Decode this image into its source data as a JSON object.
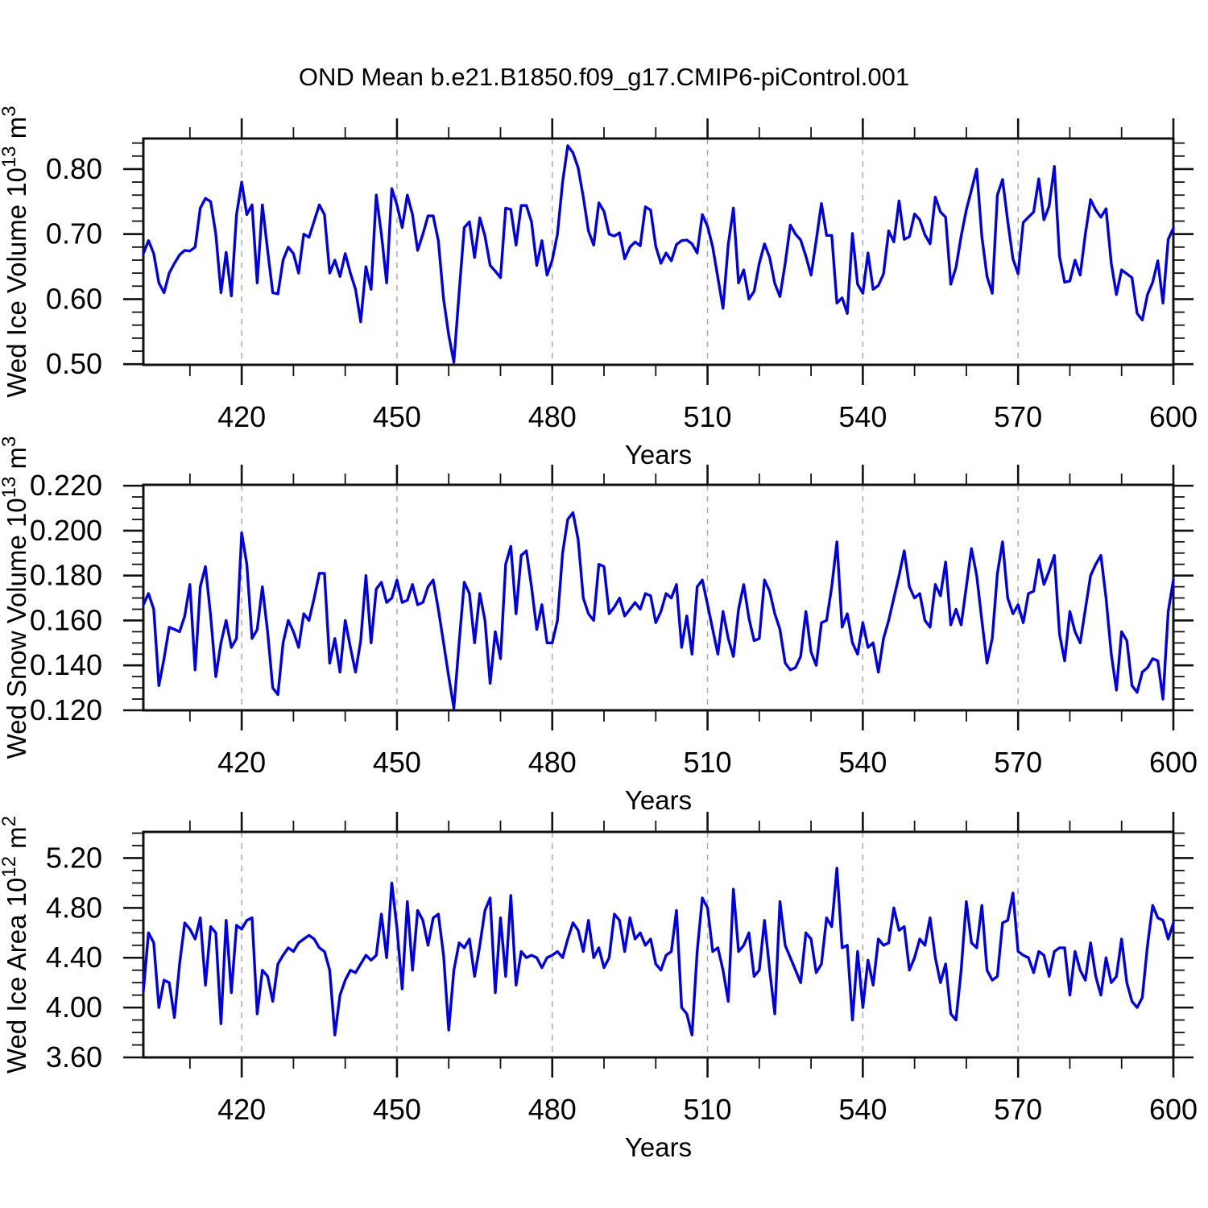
{
  "title": "OND Mean b.e21.B1850.f09_g17.CMIP6-piControl.001",
  "style": {
    "line_color": "#0000e8",
    "frame_color": "#111111",
    "grid_color": "#aaaaaa",
    "text_color": "#000000",
    "background": "#ffffff"
  },
  "chart_data": [
    {
      "type": "line",
      "ylabel_parts": [
        {
          "t": "Wed Ice Volume 10"
        },
        {
          "sup": "13"
        },
        {
          "t": " m"
        },
        {
          "sup": "3"
        }
      ],
      "xlabel": "Years",
      "x_range": [
        401,
        600
      ],
      "x_major": [
        420,
        450,
        480,
        510,
        540,
        570,
        600
      ],
      "x_minor_step": 10,
      "y_range": [
        0.499,
        0.847
      ],
      "y_major": [
        0.5,
        0.6,
        0.7,
        0.8
      ],
      "y_minor_step": 0.02,
      "y_decimals": 2,
      "grid": true,
      "legend": "none",
      "x_start_year": 401,
      "values": [
        0.67,
        0.69,
        0.67,
        0.625,
        0.61,
        0.64,
        0.655,
        0.668,
        0.675,
        0.674,
        0.68,
        0.74,
        0.755,
        0.75,
        0.7,
        0.61,
        0.672,
        0.605,
        0.73,
        0.78,
        0.73,
        0.745,
        0.625,
        0.745,
        0.675,
        0.61,
        0.608,
        0.66,
        0.68,
        0.67,
        0.64,
        0.7,
        0.695,
        0.72,
        0.745,
        0.73,
        0.64,
        0.66,
        0.635,
        0.67,
        0.64,
        0.615,
        0.565,
        0.65,
        0.615,
        0.76,
        0.7,
        0.625,
        0.77,
        0.745,
        0.71,
        0.76,
        0.73,
        0.675,
        0.7,
        0.728,
        0.728,
        0.69,
        0.6,
        0.545,
        0.503,
        0.61,
        0.71,
        0.719,
        0.664,
        0.725,
        0.697,
        0.652,
        0.643,
        0.633,
        0.74,
        0.738,
        0.683,
        0.744,
        0.744,
        0.719,
        0.652,
        0.69,
        0.637,
        0.66,
        0.7,
        0.78,
        0.836,
        0.825,
        0.802,
        0.757,
        0.705,
        0.683,
        0.748,
        0.735,
        0.7,
        0.697,
        0.702,
        0.662,
        0.68,
        0.688,
        0.682,
        0.742,
        0.737,
        0.681,
        0.655,
        0.671,
        0.659,
        0.684,
        0.69,
        0.691,
        0.685,
        0.671,
        0.73,
        0.712,
        0.68,
        0.633,
        0.586,
        0.684,
        0.74,
        0.625,
        0.645,
        0.6,
        0.612,
        0.655,
        0.685,
        0.664,
        0.624,
        0.604,
        0.655,
        0.714,
        0.7,
        0.691,
        0.666,
        0.637,
        0.69,
        0.747,
        0.698,
        0.698,
        0.594,
        0.602,
        0.578,
        0.701,
        0.623,
        0.609,
        0.671,
        0.615,
        0.621,
        0.639,
        0.705,
        0.688,
        0.751,
        0.692,
        0.696,
        0.731,
        0.722,
        0.699,
        0.685,
        0.757,
        0.734,
        0.726,
        0.623,
        0.649,
        0.697,
        0.737,
        0.768,
        0.8,
        0.696,
        0.635,
        0.609,
        0.76,
        0.784,
        0.72,
        0.662,
        0.639,
        0.718,
        0.726,
        0.734,
        0.785,
        0.722,
        0.743,
        0.804,
        0.666,
        0.626,
        0.628,
        0.66,
        0.637,
        0.7,
        0.753,
        0.737,
        0.726,
        0.739,
        0.655,
        0.607,
        0.645,
        0.639,
        0.633,
        0.578,
        0.568,
        0.607,
        0.626,
        0.659,
        0.594,
        0.692,
        0.709
      ]
    },
    {
      "type": "line",
      "ylabel_parts": [
        {
          "t": "Wed Snow Volume 10"
        },
        {
          "sup": "13"
        },
        {
          "t": " m"
        },
        {
          "sup": "3"
        }
      ],
      "xlabel": "Years",
      "x_range": [
        401,
        600
      ],
      "x_major": [
        420,
        450,
        480,
        510,
        540,
        570,
        600
      ],
      "x_minor_step": 10,
      "y_range": [
        0.12,
        0.2204
      ],
      "y_major": [
        0.12,
        0.14,
        0.16,
        0.18,
        0.2,
        0.22
      ],
      "y_minor_step": 0.005,
      "y_decimals": 3,
      "grid": true,
      "legend": "none",
      "x_start_year": 401,
      "values": [
        0.167,
        0.172,
        0.165,
        0.131,
        0.143,
        0.157,
        0.156,
        0.155,
        0.162,
        0.176,
        0.138,
        0.175,
        0.184,
        0.162,
        0.135,
        0.15,
        0.16,
        0.148,
        0.152,
        0.199,
        0.185,
        0.152,
        0.156,
        0.175,
        0.155,
        0.13,
        0.127,
        0.15,
        0.16,
        0.155,
        0.148,
        0.163,
        0.16,
        0.17,
        0.181,
        0.181,
        0.141,
        0.152,
        0.137,
        0.16,
        0.148,
        0.137,
        0.151,
        0.18,
        0.15,
        0.174,
        0.177,
        0.168,
        0.17,
        0.178,
        0.168,
        0.169,
        0.176,
        0.167,
        0.168,
        0.175,
        0.178,
        0.165,
        0.15,
        0.135,
        0.121,
        0.15,
        0.177,
        0.172,
        0.15,
        0.172,
        0.16,
        0.132,
        0.155,
        0.143,
        0.185,
        0.193,
        0.163,
        0.189,
        0.191,
        0.175,
        0.156,
        0.167,
        0.15,
        0.15,
        0.16,
        0.19,
        0.205,
        0.208,
        0.196,
        0.17,
        0.163,
        0.16,
        0.185,
        0.184,
        0.163,
        0.166,
        0.17,
        0.162,
        0.165,
        0.168,
        0.165,
        0.172,
        0.171,
        0.159,
        0.164,
        0.172,
        0.17,
        0.176,
        0.148,
        0.162,
        0.145,
        0.175,
        0.178,
        0.167,
        0.156,
        0.145,
        0.164,
        0.152,
        0.144,
        0.165,
        0.176,
        0.161,
        0.151,
        0.152,
        0.178,
        0.173,
        0.163,
        0.156,
        0.141,
        0.138,
        0.139,
        0.144,
        0.164,
        0.146,
        0.14,
        0.159,
        0.16,
        0.175,
        0.195,
        0.157,
        0.163,
        0.15,
        0.145,
        0.159,
        0.148,
        0.15,
        0.137,
        0.152,
        0.16,
        0.17,
        0.18,
        0.191,
        0.175,
        0.17,
        0.172,
        0.16,
        0.157,
        0.176,
        0.171,
        0.186,
        0.158,
        0.165,
        0.158,
        0.175,
        0.192,
        0.18,
        0.16,
        0.141,
        0.152,
        0.181,
        0.195,
        0.17,
        0.163,
        0.167,
        0.159,
        0.172,
        0.173,
        0.187,
        0.176,
        0.182,
        0.189,
        0.154,
        0.142,
        0.164,
        0.155,
        0.15,
        0.165,
        0.18,
        0.185,
        0.189,
        0.17,
        0.145,
        0.129,
        0.155,
        0.151,
        0.131,
        0.128,
        0.137,
        0.139,
        0.143,
        0.142,
        0.125,
        0.164,
        0.178
      ]
    },
    {
      "type": "line",
      "ylabel_parts": [
        {
          "t": "Wed Ice Area 10"
        },
        {
          "sup": "12"
        },
        {
          "t": " m"
        },
        {
          "sup": "2"
        }
      ],
      "xlabel": "Years",
      "x_range": [
        401,
        600
      ],
      "x_major": [
        420,
        450,
        480,
        510,
        540,
        570,
        600
      ],
      "x_minor_step": 10,
      "y_range": [
        3.6,
        5.41
      ],
      "y_major": [
        3.6,
        4.0,
        4.4,
        4.8,
        5.2
      ],
      "y_minor_step": 0.1,
      "y_decimals": 2,
      "grid": true,
      "legend": "none",
      "x_start_year": 401,
      "values": [
        4.13,
        4.6,
        4.52,
        4.0,
        4.22,
        4.2,
        3.92,
        4.35,
        4.68,
        4.63,
        4.55,
        4.72,
        4.18,
        4.65,
        4.6,
        3.87,
        4.7,
        4.12,
        4.66,
        4.63,
        4.7,
        4.72,
        3.95,
        4.3,
        4.25,
        4.05,
        4.35,
        4.42,
        4.48,
        4.45,
        4.52,
        4.55,
        4.58,
        4.55,
        4.48,
        4.45,
        4.3,
        3.78,
        4.1,
        4.22,
        4.3,
        4.28,
        4.35,
        4.42,
        4.38,
        4.42,
        4.75,
        4.4,
        5.0,
        4.64,
        4.15,
        4.85,
        4.3,
        4.78,
        4.7,
        4.5,
        4.72,
        4.75,
        4.42,
        3.82,
        4.3,
        4.52,
        4.48,
        4.55,
        4.25,
        4.5,
        4.78,
        4.88,
        4.12,
        4.72,
        4.25,
        4.9,
        4.18,
        4.45,
        4.4,
        4.42,
        4.4,
        4.32,
        4.4,
        4.42,
        4.45,
        4.4,
        4.55,
        4.68,
        4.62,
        4.45,
        4.7,
        4.4,
        4.48,
        4.32,
        4.4,
        4.75,
        4.7,
        4.45,
        4.72,
        4.55,
        4.6,
        4.5,
        4.55,
        4.35,
        4.3,
        4.42,
        4.45,
        4.78,
        4.0,
        3.95,
        3.78,
        4.45,
        4.88,
        4.8,
        4.45,
        4.48,
        4.3,
        4.05,
        4.95,
        4.45,
        4.5,
        4.6,
        4.25,
        4.3,
        4.7,
        4.3,
        3.95,
        4.85,
        4.5,
        4.4,
        4.3,
        4.2,
        4.6,
        4.55,
        4.28,
        4.35,
        4.72,
        4.65,
        5.12,
        4.48,
        4.5,
        3.9,
        4.45,
        4.0,
        4.38,
        4.18,
        4.55,
        4.5,
        4.52,
        4.8,
        4.62,
        4.65,
        4.3,
        4.4,
        4.55,
        4.5,
        4.72,
        4.4,
        4.2,
        4.35,
        3.95,
        3.9,
        4.3,
        4.85,
        4.52,
        4.48,
        4.82,
        4.3,
        4.22,
        4.25,
        4.68,
        4.7,
        4.92,
        4.45,
        4.42,
        4.4,
        4.28,
        4.45,
        4.42,
        4.25,
        4.45,
        4.48,
        4.48,
        4.1,
        4.45,
        4.3,
        4.22,
        4.52,
        4.25,
        4.1,
        4.4,
        4.2,
        4.25,
        4.55,
        4.2,
        4.05,
        4.0,
        4.08,
        4.5,
        4.82,
        4.72,
        4.7,
        4.55,
        4.68
      ]
    }
  ]
}
